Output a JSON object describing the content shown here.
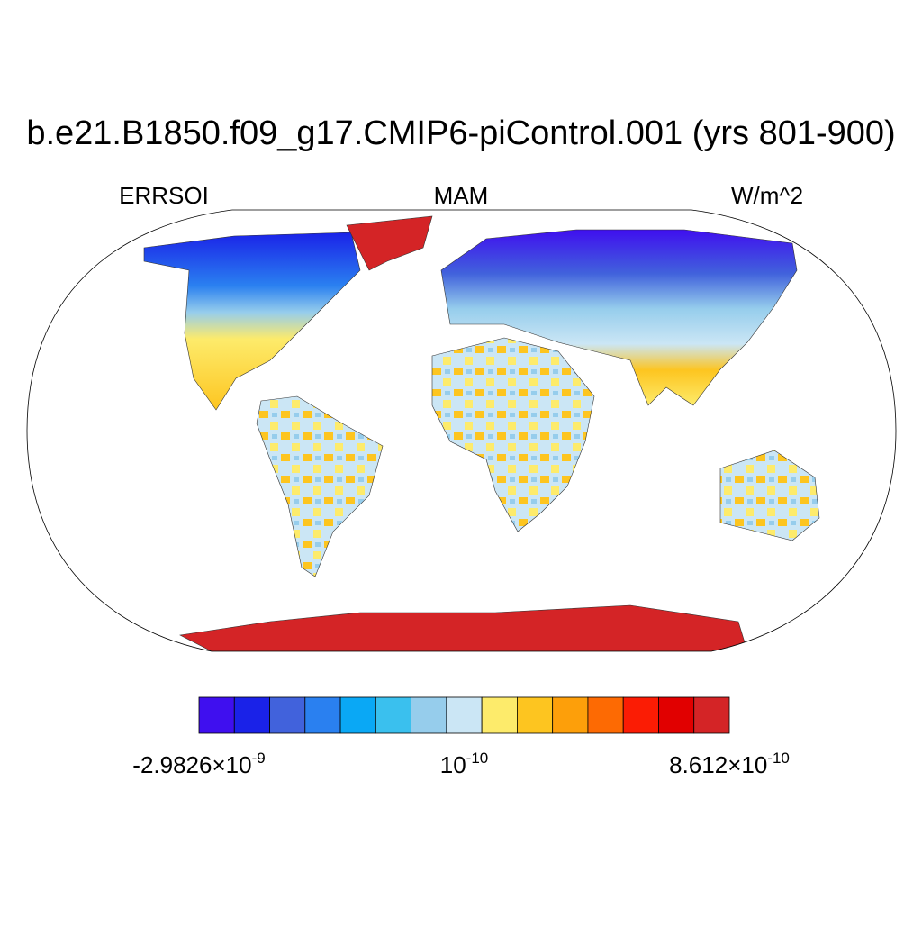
{
  "title": "b.e21.B1850.f09_g17.CMIP6-piControl.001 (yrs 801-900)",
  "left_label": "ERRSOI",
  "center_label": "MAM",
  "right_label": "W/m^2",
  "colorbar": {
    "colors": [
      "#3f0fef",
      "#1a22e8",
      "#4162dc",
      "#2a80f0",
      "#0aa8f5",
      "#3ac0ee",
      "#96cdec",
      "#cbe6f5",
      "#fdeb6b",
      "#fdc520",
      "#fd9f0a",
      "#fd6a03",
      "#fb1c04",
      "#e10000",
      "#d42426"
    ],
    "labels": [
      {
        "text": "-2.9826×10",
        "exponent": "-9"
      },
      {
        "text": "10",
        "exponent": "-10"
      },
      {
        "text": "8.612×10",
        "exponent": "-10"
      }
    ]
  }
}
